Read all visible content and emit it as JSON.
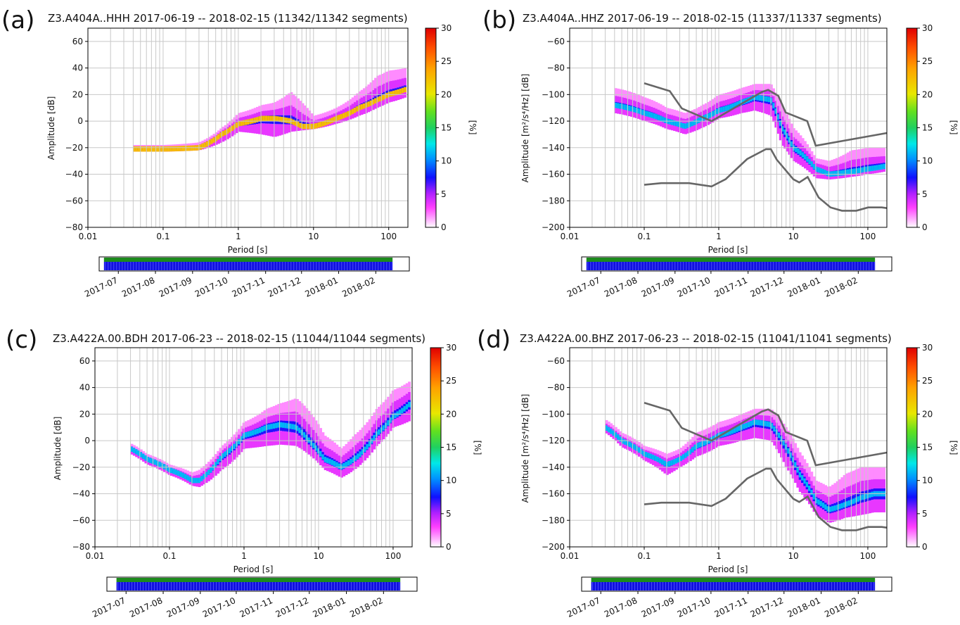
{
  "chart_data": [
    {
      "type": "heatmap",
      "panel_label": "(a)",
      "title": "Z3.A404A..HHH   2017-06-19 -- 2018-02-15   (11342/11342 segments)",
      "xlabel": "Period [s]",
      "ylabel": "Amplitude [dB]",
      "xscale": "log",
      "xlim": [
        0.01,
        180
      ],
      "ylim": [
        -80,
        70
      ],
      "xticks": [
        0.01,
        0.1,
        1,
        10,
        100
      ],
      "xticklabels": [
        "0.01",
        "0.1",
        "1",
        "10",
        "100"
      ],
      "yticks": [
        -80,
        -60,
        -40,
        -20,
        0,
        20,
        40,
        60
      ],
      "yticklabels": [
        "−80",
        "−60",
        "−40",
        "−20",
        "0",
        "20",
        "40",
        "60"
      ],
      "colorbar": {
        "label": "[%]",
        "min": 0,
        "max": 30,
        "ticks": [
          0,
          5,
          10,
          15,
          20,
          25,
          30
        ],
        "ticklabels": [
          "0",
          "5",
          "10",
          "15",
          "20",
          "25",
          "30"
        ],
        "colormap": "pqlx"
      },
      "density": {
        "period": [
          0.04,
          0.1,
          0.3,
          0.6,
          1,
          2,
          3,
          5,
          7,
          10,
          20,
          40,
          70,
          100,
          170
        ],
        "mode": [
          -21,
          -21,
          -20,
          -10,
          -2,
          2,
          2,
          0,
          -4,
          -4,
          2,
          10,
          16,
          20,
          24
        ],
        "lower": [
          -23,
          -23,
          -22,
          -16,
          -8,
          -10,
          -12,
          -8,
          -7,
          -6,
          -2,
          4,
          10,
          14,
          18
        ],
        "upper": [
          -18,
          -18,
          -16,
          -5,
          6,
          12,
          14,
          22,
          14,
          4,
          10,
          22,
          34,
          38,
          40
        ],
        "peak_percent": 30
      },
      "nlnm_nhnm": null,
      "availability": {
        "start": "2017-06-19",
        "end": "2018-02-15",
        "axis_start": "2017-06-15",
        "axis_end": "2018-03-01",
        "xticklabels": [
          "2017-07",
          "2017-08",
          "2017-09",
          "2017-10",
          "2017-11",
          "2017-12",
          "2018-01",
          "2018-02"
        ]
      }
    },
    {
      "type": "heatmap",
      "panel_label": "(b)",
      "title": "Z3.A404A..HHZ   2017-06-19 -- 2018-02-15   (11337/11337 segments)",
      "xlabel": "Period [s]",
      "ylabel": "Amplitude [m²/s⁴/Hz] [dB]",
      "xscale": "log",
      "xlim": [
        0.01,
        180
      ],
      "ylim": [
        -200,
        -50
      ],
      "xticks": [
        0.01,
        0.1,
        1,
        10,
        100
      ],
      "xticklabels": [
        "0.01",
        "0.1",
        "1",
        "10",
        "100"
      ],
      "yticks": [
        -200,
        -180,
        -160,
        -140,
        -120,
        -100,
        -80,
        -60
      ],
      "yticklabels": [
        "−200",
        "−180",
        "−160",
        "−140",
        "−120",
        "−100",
        "−80",
        "−60"
      ],
      "colorbar": {
        "label": "[%]",
        "min": 0,
        "max": 30,
        "ticks": [
          0,
          5,
          10,
          15,
          20,
          25,
          30
        ],
        "ticklabels": [
          "0",
          "5",
          "10",
          "15",
          "20",
          "25",
          "30"
        ],
        "colormap": "pqlx"
      },
      "density": {
        "period": [
          0.04,
          0.1,
          0.2,
          0.35,
          0.6,
          1,
          2,
          3,
          5,
          7,
          10,
          20,
          30,
          60,
          100,
          170
        ],
        "mode": [
          -108,
          -114,
          -120,
          -124,
          -118,
          -112,
          -106,
          -102,
          -104,
          -125,
          -140,
          -156,
          -160,
          -158,
          -156,
          -154
        ],
        "lower": [
          -114,
          -120,
          -126,
          -130,
          -125,
          -118,
          -114,
          -112,
          -116,
          -138,
          -150,
          -163,
          -164,
          -162,
          -160,
          -158
        ],
        "upper": [
          -95,
          -102,
          -110,
          -114,
          -108,
          -100,
          -95,
          -92,
          -92,
          -108,
          -125,
          -148,
          -150,
          -142,
          -140,
          -140
        ],
        "peak_percent": 15
      },
      "nlnm_nhnm": true,
      "availability": {
        "start": "2017-06-19",
        "end": "2018-02-15",
        "axis_start": "2017-06-15",
        "axis_end": "2018-03-01",
        "xticklabels": [
          "2017-07",
          "2017-08",
          "2017-09",
          "2017-10",
          "2017-11",
          "2017-12",
          "2018-01",
          "2018-02"
        ]
      }
    },
    {
      "type": "heatmap",
      "panel_label": "(c)",
      "title": "Z3.A422A.00.BDH   2017-06-23 -- 2018-02-15   (11044/11044 segments)",
      "xlabel": "Period [s]",
      "ylabel": "Amplitude [dB]",
      "xscale": "log",
      "xlim": [
        0.01,
        180
      ],
      "ylim": [
        -80,
        70
      ],
      "xticks": [
        0.01,
        0.1,
        1,
        10,
        100
      ],
      "xticklabels": [
        "0.01",
        "0.1",
        "1",
        "10",
        "100"
      ],
      "yticks": [
        -80,
        -60,
        -40,
        -20,
        0,
        20,
        40,
        60
      ],
      "yticklabels": [
        "−80",
        "−60",
        "−40",
        "−20",
        "0",
        "20",
        "40",
        "60"
      ],
      "colorbar": {
        "label": "[%]",
        "min": 0,
        "max": 30,
        "ticks": [
          0,
          5,
          10,
          15,
          20,
          25,
          30
        ],
        "ticklabels": [
          "0",
          "5",
          "10",
          "15",
          "20",
          "25",
          "30"
        ],
        "colormap": "pqlx"
      },
      "density": {
        "period": [
          0.03,
          0.05,
          0.1,
          0.2,
          0.25,
          0.5,
          1,
          2,
          3,
          5,
          8,
          12,
          20,
          30,
          60,
          100,
          170
        ],
        "mode": [
          -6,
          -14,
          -22,
          -30,
          -30,
          -12,
          4,
          10,
          12,
          10,
          -2,
          -14,
          -20,
          -14,
          5,
          18,
          28
        ],
        "lower": [
          -10,
          -18,
          -26,
          -34,
          -35,
          -22,
          -6,
          -4,
          -3,
          -4,
          -12,
          -22,
          -28,
          -22,
          -4,
          10,
          15
        ],
        "upper": [
          -2,
          -10,
          -18,
          -24,
          -22,
          -4,
          14,
          24,
          28,
          32,
          20,
          4,
          -6,
          4,
          24,
          38,
          45
        ],
        "peak_percent": 15
      },
      "nlnm_nhnm": null,
      "availability": {
        "start": "2017-06-23",
        "end": "2018-02-15",
        "axis_start": "2017-06-15",
        "axis_end": "2018-03-01",
        "xticklabels": [
          "2017-07",
          "2017-08",
          "2017-09",
          "2017-10",
          "2017-11",
          "2017-12",
          "2018-01",
          "2018-02"
        ]
      }
    },
    {
      "type": "heatmap",
      "panel_label": "(d)",
      "title": "Z3.A422A.00.BHZ   2017-06-23 -- 2018-02-15   (11041/11041 segments)",
      "xlabel": "Period [s]",
      "ylabel": "Amplitude [m²/s⁴/Hz] [dB]",
      "xscale": "log",
      "xlim": [
        0.01,
        180
      ],
      "ylim": [
        -200,
        -50
      ],
      "xticks": [
        0.01,
        0.1,
        1,
        10,
        100
      ],
      "xticklabels": [
        "0.01",
        "0.1",
        "1",
        "10",
        "100"
      ],
      "yticks": [
        -200,
        -180,
        -160,
        -140,
        -120,
        -100,
        -80,
        -60
      ],
      "yticklabels": [
        "−200",
        "−180",
        "−160",
        "−140",
        "−120",
        "−100",
        "−80",
        "−60"
      ],
      "colorbar": {
        "label": "[%]",
        "min": 0,
        "max": 30,
        "ticks": [
          0,
          5,
          10,
          15,
          20,
          25,
          30
        ],
        "ticklabels": [
          "0",
          "5",
          "10",
          "15",
          "20",
          "25",
          "30"
        ],
        "colormap": "pqlx"
      },
      "density": {
        "period": [
          0.03,
          0.05,
          0.1,
          0.2,
          0.3,
          0.5,
          1,
          2,
          3,
          5,
          8,
          12,
          20,
          30,
          50,
          80,
          120,
          170
        ],
        "mode": [
          -110,
          -120,
          -130,
          -138,
          -134,
          -124,
          -116,
          -110,
          -106,
          -108,
          -125,
          -145,
          -165,
          -172,
          -168,
          -163,
          -160,
          -160
        ],
        "lower": [
          -114,
          -125,
          -135,
          -146,
          -140,
          -132,
          -124,
          -120,
          -118,
          -120,
          -140,
          -158,
          -176,
          -182,
          -178,
          -176,
          -174,
          -174
        ],
        "upper": [
          -104,
          -114,
          -124,
          -130,
          -126,
          -114,
          -106,
          -100,
          -96,
          -96,
          -110,
          -128,
          -150,
          -155,
          -145,
          -140,
          -140,
          -140
        ],
        "peak_percent": 15
      },
      "nlnm_nhnm": true,
      "availability": {
        "start": "2017-06-23",
        "end": "2018-02-15",
        "axis_start": "2017-06-15",
        "axis_end": "2018-03-01",
        "xticklabels": [
          "2017-07",
          "2017-08",
          "2017-09",
          "2017-10",
          "2017-11",
          "2017-12",
          "2018-01",
          "2018-02"
        ]
      }
    }
  ],
  "reference_models": {
    "nhnm": {
      "period": [
        0.1,
        0.22,
        0.32,
        0.8,
        3.8,
        4.6,
        6.3,
        7.9,
        15.4,
        20,
        354.8
      ],
      "db": [
        -91.5,
        -97.4,
        -110.5,
        -120,
        -98,
        -96.5,
        -101,
        -113.5,
        -120,
        -138.5,
        -126
      ]
    },
    "nlnm": {
      "period": [
        0.1,
        0.17,
        0.4,
        0.8,
        1.24,
        2.4,
        4.3,
        5,
        6,
        10,
        12,
        15.6,
        21.9,
        31.6,
        45,
        70,
        101,
        154,
        328
      ],
      "db": [
        -168,
        -166.7,
        -166.7,
        -169.2,
        -163.7,
        -148.6,
        -141.1,
        -141.1,
        -149,
        -163.8,
        -166.2,
        -162.1,
        -177.5,
        -185,
        -187.5,
        -187.5,
        -185,
        -185,
        -187.5
      ]
    },
    "color": "#666666"
  },
  "availability_colors": {
    "top": "#1c8a1c",
    "bottom": "#1010e0"
  }
}
